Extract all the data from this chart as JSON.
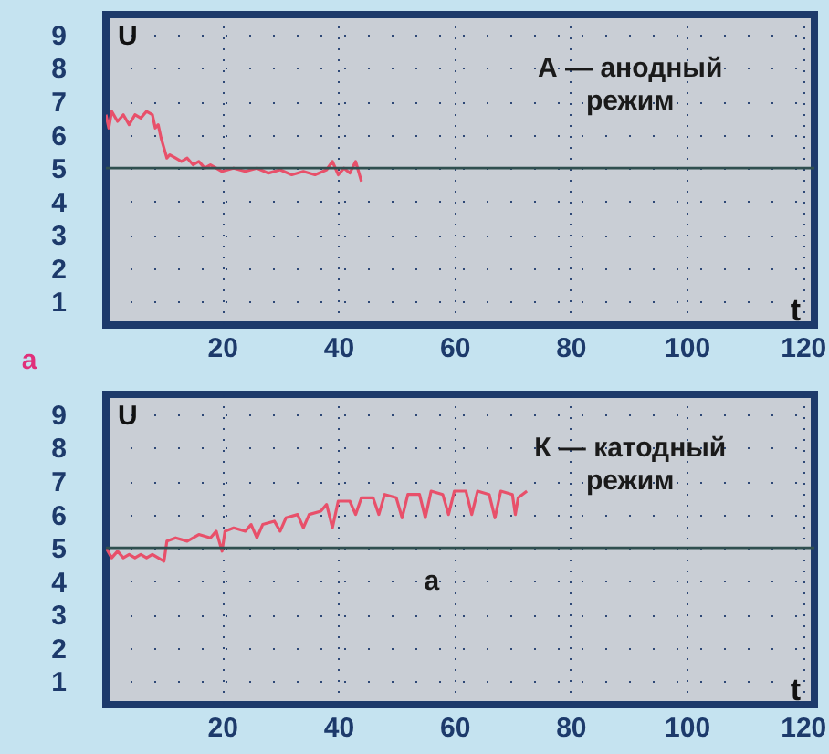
{
  "chart_data": [
    {
      "type": "line",
      "xlabel": "t",
      "ylabel": "U",
      "xlim": [
        0,
        122
      ],
      "xticks": [
        20,
        40,
        60,
        80,
        100,
        120
      ],
      "ylim": [
        0.3,
        9.6
      ],
      "yticks": [
        1,
        2,
        3,
        4,
        5,
        6,
        7,
        8,
        9
      ],
      "grid": true,
      "annotations": [
        "А — анодный режим",
        "а"
      ],
      "ref_lines": [
        {
          "axis": "y",
          "value": 5,
          "color": "#2f4f4f"
        }
      ],
      "series": [
        {
          "color": "#e8506a",
          "x": [
            0,
            0.5,
            1,
            2,
            3,
            4,
            5,
            6,
            7,
            8,
            8.5,
            9,
            9.5,
            10,
            10.5,
            11,
            12,
            13,
            14,
            15,
            16,
            17,
            18,
            20,
            22,
            24,
            26,
            28,
            30,
            32,
            34,
            36,
            38,
            39,
            40,
            41,
            42,
            43,
            44
          ],
          "values": [
            6.6,
            6.2,
            6.7,
            6.4,
            6.6,
            6.3,
            6.6,
            6.5,
            6.7,
            6.6,
            6.2,
            6.3,
            5.9,
            5.6,
            5.3,
            5.4,
            5.3,
            5.2,
            5.3,
            5.1,
            5.2,
            5.0,
            5.1,
            4.9,
            5.0,
            4.9,
            5.0,
            4.85,
            4.95,
            4.8,
            4.9,
            4.8,
            4.95,
            5.2,
            4.8,
            5.0,
            4.85,
            5.2,
            4.6
          ]
        }
      ]
    },
    {
      "type": "line",
      "xlabel": "t",
      "ylabel": "U",
      "xlim": [
        0,
        122
      ],
      "xticks": [
        20,
        40,
        60,
        80,
        100,
        120
      ],
      "ylim": [
        0.3,
        9.6
      ],
      "yticks": [
        1,
        2,
        3,
        4,
        5,
        6,
        7,
        8,
        9
      ],
      "grid": true,
      "annotations": [
        "К — катодный режим",
        "а"
      ],
      "ref_lines": [
        {
          "axis": "y",
          "value": 5,
          "color": "#2f4f4f"
        }
      ],
      "series": [
        {
          "color": "#e8506a",
          "x": [
            0,
            1,
            2,
            3,
            4,
            5,
            6,
            7,
            8,
            9,
            10,
            10.5,
            12,
            14,
            16,
            18,
            19,
            20,
            20.5,
            22,
            24,
            25,
            26,
            27,
            29,
            30,
            31,
            33,
            34,
            35,
            37,
            38,
            39,
            40,
            42,
            43,
            44,
            46,
            47,
            48,
            50,
            51,
            52,
            54,
            55,
            56,
            58,
            59,
            60,
            62,
            63,
            64,
            66,
            67,
            68,
            70,
            70.5,
            71,
            72.5
          ],
          "values": [
            5.0,
            4.7,
            4.9,
            4.7,
            4.8,
            4.7,
            4.8,
            4.7,
            4.8,
            4.7,
            4.6,
            5.2,
            5.3,
            5.2,
            5.4,
            5.3,
            5.5,
            4.9,
            5.5,
            5.6,
            5.5,
            5.7,
            5.3,
            5.7,
            5.8,
            5.5,
            5.9,
            6.0,
            5.6,
            6.0,
            6.1,
            6.3,
            5.6,
            6.4,
            6.4,
            6.0,
            6.5,
            6.5,
            6.0,
            6.6,
            6.5,
            5.9,
            6.6,
            6.6,
            5.9,
            6.7,
            6.6,
            6.0,
            6.7,
            6.7,
            6.0,
            6.7,
            6.6,
            5.9,
            6.7,
            6.6,
            6.0,
            6.5,
            6.7
          ]
        }
      ]
    }
  ]
}
